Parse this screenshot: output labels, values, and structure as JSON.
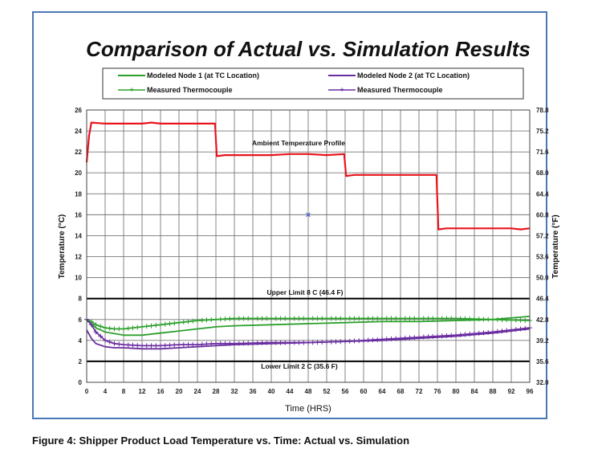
{
  "chart_data": {
    "type": "line",
    "title": "Comparison of Actual vs. Simulation Results",
    "xlabel": "Time (HRS)",
    "ylabel": "Temperature (°C)",
    "y2label": "Temperature (°F)",
    "xlim": [
      0,
      96
    ],
    "ylim": [
      0,
      26
    ],
    "x_ticks": [
      "0",
      "4",
      "8",
      "12",
      "16",
      "20",
      "24",
      "28",
      "32",
      "36",
      "40",
      "44",
      "48",
      "52",
      "56",
      "60",
      "64",
      "68",
      "72",
      "76",
      "80",
      "84",
      "88",
      "92",
      "96"
    ],
    "y_ticks": [
      "0",
      "2",
      "4",
      "6",
      "8",
      "10",
      "12",
      "14",
      "16",
      "18",
      "20",
      "22",
      "24",
      "26"
    ],
    "y2_ticks": [
      "32.0",
      "35.6",
      "39.2",
      "42.8",
      "46.4",
      "50.0",
      "53.6",
      "57.2",
      "60.8",
      "64.4",
      "68.0",
      "71.6",
      "75.2",
      "78.8"
    ],
    "grid": true,
    "legend_position": "top",
    "legend": [
      {
        "label": "Modeled Node 1 (at TC Location)",
        "color": "#2ca02c",
        "marker": "none"
      },
      {
        "label": "Modeled Node 2 (at TC Location)",
        "color": "#6a2ea0",
        "marker": "none"
      },
      {
        "label": "Measured Thermocouple",
        "color": "#2ca02c",
        "marker": "plus"
      },
      {
        "label": "Measured Thermocouple",
        "color": "#6a2ea0",
        "marker": "plus"
      }
    ],
    "annotations": {
      "ambient": "Ambient Temperature Profile",
      "upper": "Upper Limit 8  C (46.4  F)",
      "lower": "Lower Limit 2  C (35.6  F)"
    },
    "series": [
      {
        "color": "#e8141c",
        "x": [
          0,
          0.5,
          1,
          4,
          8,
          12,
          14,
          16,
          20,
          24,
          27.8,
          28.2,
          30,
          32,
          36,
          40,
          44,
          48,
          52,
          55.8,
          56.2,
          58,
          60,
          64,
          68,
          72,
          75.8,
          76.2,
          78,
          80,
          84,
          88,
          92,
          94,
          96
        ],
        "y": [
          21,
          23.5,
          24.8,
          24.7,
          24.7,
          24.7,
          24.8,
          24.7,
          24.7,
          24.7,
          24.7,
          21.6,
          21.7,
          21.7,
          21.7,
          21.7,
          21.8,
          21.8,
          21.7,
          21.8,
          19.7,
          19.8,
          19.8,
          19.8,
          19.8,
          19.8,
          19.8,
          14.6,
          14.7,
          14.7,
          14.7,
          14.7,
          14.7,
          14.6,
          14.7
        ]
      },
      {
        "color": "#2ca02c",
        "x": [
          0,
          1,
          2,
          4,
          8,
          12,
          16,
          20,
          24,
          28,
          32,
          40,
          48,
          56,
          64,
          72,
          80,
          88,
          96
        ],
        "y": [
          5.9,
          5.6,
          5.2,
          4.8,
          4.5,
          4.5,
          4.7,
          4.9,
          5.1,
          5.3,
          5.4,
          5.5,
          5.6,
          5.7,
          5.8,
          5.8,
          5.9,
          6.0,
          6.3
        ]
      },
      {
        "color": "#6a2ea0",
        "x": [
          0,
          1,
          2,
          4,
          6,
          8,
          12,
          16,
          20,
          24,
          28,
          32,
          40,
          48,
          56,
          64,
          72,
          80,
          88,
          96
        ],
        "y": [
          5.0,
          4.2,
          3.7,
          3.4,
          3.3,
          3.3,
          3.2,
          3.2,
          3.3,
          3.4,
          3.5,
          3.6,
          3.7,
          3.8,
          3.9,
          4.0,
          4.2,
          4.4,
          4.7,
          5.1
        ]
      },
      {
        "color": "#2ca02c",
        "marker": "plus",
        "x": [
          0,
          1,
          2,
          4,
          6,
          8,
          12,
          16,
          20,
          24,
          28,
          32,
          40,
          48,
          56,
          64,
          72,
          80,
          88,
          96
        ],
        "y": [
          6.0,
          5.8,
          5.5,
          5.2,
          5.1,
          5.1,
          5.3,
          5.5,
          5.7,
          5.9,
          6.0,
          6.1,
          6.1,
          6.1,
          6.1,
          6.1,
          6.1,
          6.1,
          6.0,
          5.9
        ]
      },
      {
        "color": "#6a2ea0",
        "marker": "plus",
        "x": [
          0,
          1,
          2,
          4,
          6,
          8,
          12,
          16,
          20,
          24,
          28,
          32,
          40,
          48,
          56,
          64,
          72,
          80,
          88,
          96
        ],
        "y": [
          6.0,
          5.5,
          4.8,
          4.0,
          3.7,
          3.6,
          3.5,
          3.5,
          3.6,
          3.6,
          3.7,
          3.7,
          3.8,
          3.8,
          3.9,
          4.1,
          4.3,
          4.5,
          4.8,
          5.2
        ]
      }
    ],
    "stray_marker": {
      "x": 48,
      "y": 16,
      "color": "#3a5fcd"
    }
  },
  "caption": "Figure 4:  Shipper Product Load Temperature vs. Time: Actual vs. Simulation"
}
